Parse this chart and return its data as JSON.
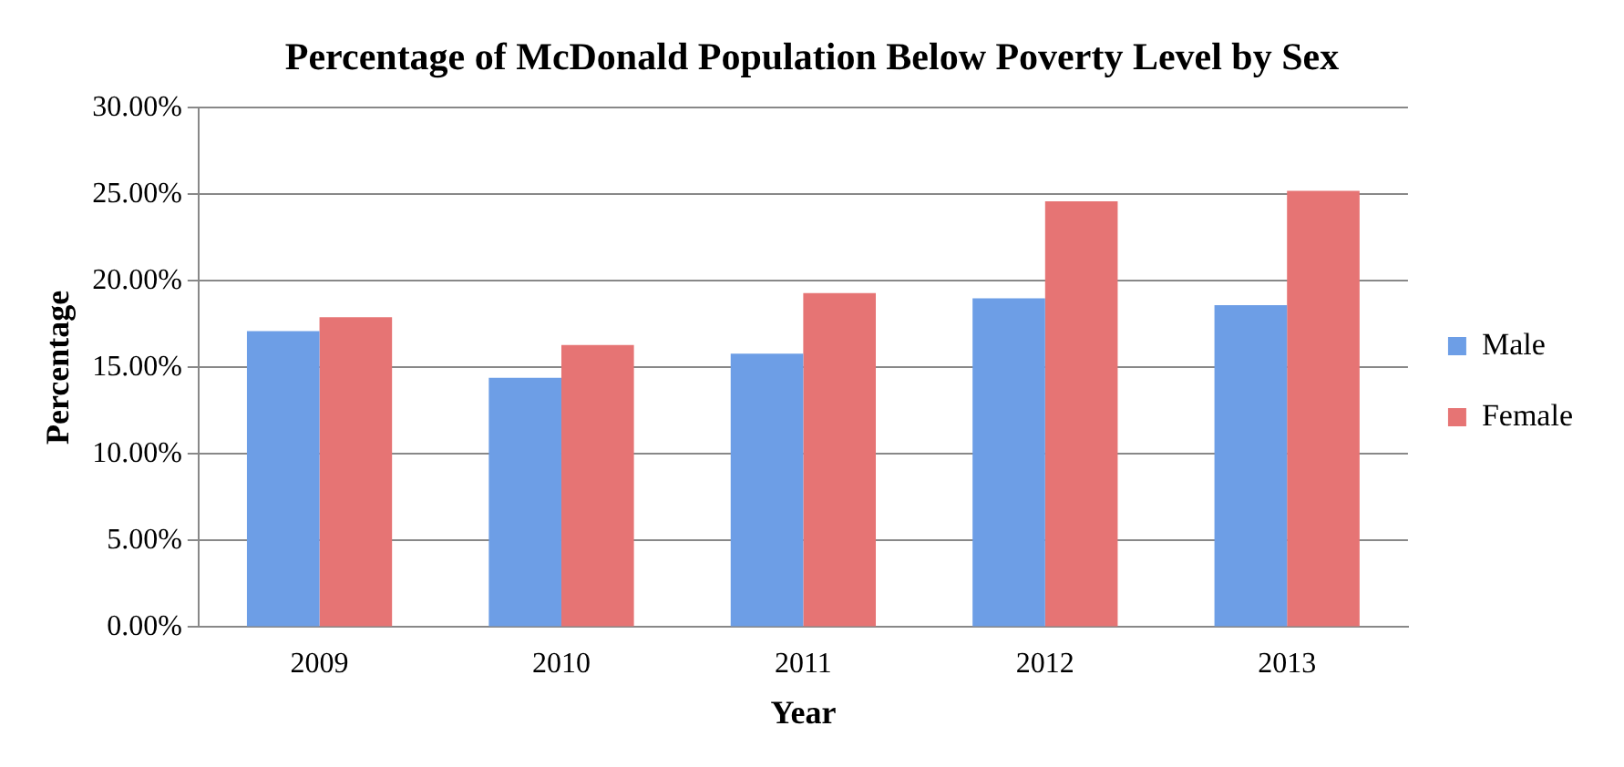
{
  "chart_data": {
    "type": "bar",
    "title": "Percentage of McDonald Population Below Poverty Level by Sex",
    "xlabel": "Year",
    "ylabel": "Percentage",
    "categories": [
      "2009",
      "2010",
      "2011",
      "2012",
      "2013"
    ],
    "series": [
      {
        "name": "Male",
        "color": "#6d9ee6",
        "values": [
          17.1,
          14.4,
          15.8,
          19.0,
          18.6
        ]
      },
      {
        "name": "Female",
        "color": "#e67474",
        "values": [
          17.9,
          16.3,
          19.3,
          24.6,
          25.2
        ]
      }
    ],
    "ylim": [
      0,
      30
    ],
    "yticks": [
      {
        "value": 0,
        "label": "0.00%"
      },
      {
        "value": 5,
        "label": "5.00%"
      },
      {
        "value": 10,
        "label": "10.00%"
      },
      {
        "value": 15,
        "label": "15.00%"
      },
      {
        "value": 20,
        "label": "20.00%"
      },
      {
        "value": 25,
        "label": "25.00%"
      },
      {
        "value": 30,
        "label": "30.00%"
      }
    ],
    "grid": "y",
    "legend": "right"
  }
}
